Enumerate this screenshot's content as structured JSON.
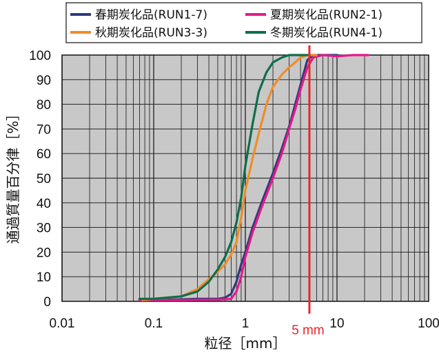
{
  "chart_data": {
    "type": "line",
    "title": "",
    "xlabel": "粒径［mm］",
    "ylabel": "通過質量百分律［%］",
    "x_scale": "log",
    "xlim": [
      0.01,
      100
    ],
    "ylim": [
      0,
      100
    ],
    "x_ticks": [
      "0.01",
      "0.1",
      "1",
      "10",
      "100"
    ],
    "y_ticks": [
      "0",
      "10",
      "20",
      "30",
      "40",
      "50",
      "60",
      "70",
      "80",
      "90",
      "100"
    ],
    "grid": true,
    "legend_position": "top",
    "colors": {
      "plot_background": "#c8c8c8",
      "grid": "#111111",
      "annotation": "#e8262c"
    },
    "annotation": {
      "x": 5,
      "label": "5 mm",
      "color": "#e8262c"
    },
    "series": [
      {
        "name": "春期炭化品(RUN1-7)",
        "color": "#2e3a7c",
        "points": [
          [
            0.075,
            0.5
          ],
          [
            0.1,
            0.5
          ],
          [
            0.2,
            0.8
          ],
          [
            0.3,
            1
          ],
          [
            0.5,
            1
          ],
          [
            0.6,
            1.5
          ],
          [
            0.7,
            3
          ],
          [
            0.8,
            8
          ],
          [
            0.9,
            15
          ],
          [
            1.0,
            20
          ],
          [
            1.2,
            30
          ],
          [
            1.5,
            40
          ],
          [
            2,
            52
          ],
          [
            2.5,
            62
          ],
          [
            3,
            71
          ],
          [
            3.5,
            80
          ],
          [
            4,
            88
          ],
          [
            4.75,
            98
          ],
          [
            5.5,
            100
          ],
          [
            6,
            100
          ],
          [
            10,
            100
          ]
        ]
      },
      {
        "name": "夏期炭化品(RUN2-1)",
        "color": "#e5198a",
        "points": [
          [
            0.07,
            0.5
          ],
          [
            0.2,
            0.5
          ],
          [
            0.5,
            0.7
          ],
          [
            0.7,
            1
          ],
          [
            0.8,
            4
          ],
          [
            0.9,
            10
          ],
          [
            1.0,
            18
          ],
          [
            1.2,
            28
          ],
          [
            1.5,
            38
          ],
          [
            2,
            50
          ],
          [
            2.5,
            60
          ],
          [
            3,
            70
          ],
          [
            3.5,
            78
          ],
          [
            4,
            86
          ],
          [
            4.75,
            95
          ],
          [
            5.5,
            99
          ],
          [
            7,
            100
          ],
          [
            10,
            99.5
          ],
          [
            15,
            100
          ],
          [
            22,
            100
          ]
        ]
      },
      {
        "name": "秋期炭化品(RUN3-3)",
        "color": "#f08c28",
        "points": [
          [
            0.075,
            0.5
          ],
          [
            0.1,
            1
          ],
          [
            0.2,
            2
          ],
          [
            0.3,
            5
          ],
          [
            0.4,
            9
          ],
          [
            0.5,
            12
          ],
          [
            0.6,
            15
          ],
          [
            0.7,
            19
          ],
          [
            0.8,
            24
          ],
          [
            0.9,
            34
          ],
          [
            1.0,
            45
          ],
          [
            1.2,
            58
          ],
          [
            1.4,
            68
          ],
          [
            1.7,
            80
          ],
          [
            2,
            87
          ],
          [
            2.5,
            92
          ],
          [
            3,
            95
          ],
          [
            3.5,
            97
          ],
          [
            4,
            99
          ],
          [
            4.75,
            100
          ],
          [
            6,
            100
          ]
        ]
      },
      {
        "name": "冬期炭化品(RUN4-1)",
        "color": "#0e6e4a",
        "points": [
          [
            0.07,
            1
          ],
          [
            0.1,
            1
          ],
          [
            0.2,
            2
          ],
          [
            0.3,
            4
          ],
          [
            0.4,
            8
          ],
          [
            0.5,
            13
          ],
          [
            0.6,
            18
          ],
          [
            0.7,
            24
          ],
          [
            0.8,
            32
          ],
          [
            0.9,
            42
          ],
          [
            1.0,
            55
          ],
          [
            1.2,
            72
          ],
          [
            1.4,
            85
          ],
          [
            1.7,
            93
          ],
          [
            2,
            97
          ],
          [
            2.5,
            99
          ],
          [
            3,
            100
          ],
          [
            4.75,
            100
          ]
        ]
      }
    ]
  }
}
